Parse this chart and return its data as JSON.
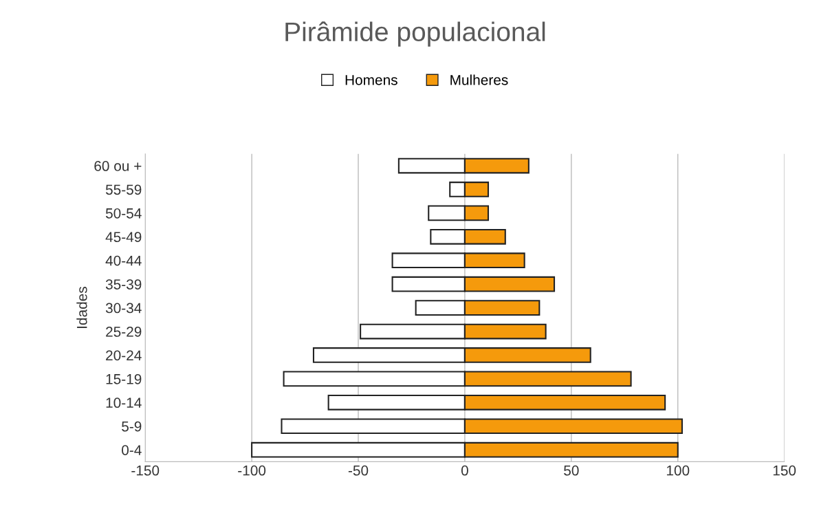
{
  "chart_data": {
    "type": "bar",
    "orientation": "horizontal",
    "title": "Pirâmide populacional",
    "ylabel": "Idades",
    "categories": [
      "60 ou +",
      "55-59",
      "50-54",
      "45-49",
      "40-44",
      "35-39",
      "30-34",
      "25-29",
      "20-24",
      "15-19",
      "10-14",
      "5-9",
      "0-4"
    ],
    "series": [
      {
        "name": "Homens",
        "color": "#ffffff",
        "values": [
          -31,
          -7,
          -17,
          -16,
          -34,
          -34,
          -23,
          -49,
          -71,
          -85,
          -64,
          -86,
          -100
        ]
      },
      {
        "name": "Mulheres",
        "color": "#f59a0c",
        "values": [
          30,
          11,
          11,
          19,
          28,
          42,
          35,
          38,
          59,
          78,
          94,
          102,
          100
        ]
      }
    ],
    "xlim": [
      -150,
      150
    ],
    "xticks": [
      -150,
      -100,
      -50,
      0,
      50,
      100,
      150
    ],
    "grid": "x",
    "legend": "top",
    "stacked": true
  }
}
